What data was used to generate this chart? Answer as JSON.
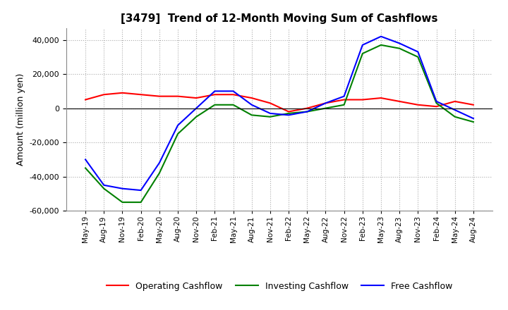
{
  "title": "[3479]  Trend of 12-Month Moving Sum of Cashflows",
  "ylabel": "Amount (million yen)",
  "ylim": [
    -60000,
    47000
  ],
  "yticks": [
    -60000,
    -40000,
    -20000,
    0,
    20000,
    40000
  ],
  "x_labels": [
    "May-19",
    "Aug-19",
    "Nov-19",
    "Feb-20",
    "May-20",
    "Aug-20",
    "Nov-20",
    "Feb-21",
    "May-21",
    "Aug-21",
    "Nov-21",
    "Feb-22",
    "May-22",
    "Aug-22",
    "Nov-22",
    "Feb-23",
    "May-23",
    "Aug-23",
    "Nov-23",
    "Feb-24",
    "May-24",
    "Aug-24"
  ],
  "operating": [
    5000,
    8000,
    9000,
    8000,
    7000,
    7000,
    6000,
    8000,
    8000,
    6000,
    3000,
    -2000,
    0,
    3000,
    5000,
    5000,
    6000,
    4000,
    2000,
    1000,
    4000,
    2000
  ],
  "investing": [
    -35000,
    -47000,
    -55000,
    -55000,
    -38000,
    -15000,
    -5000,
    2000,
    2000,
    -4000,
    -5000,
    -3000,
    -2000,
    0,
    2000,
    32000,
    37000,
    35000,
    30000,
    3000,
    -5000,
    -8000
  ],
  "free": [
    -30000,
    -45000,
    -47000,
    -48000,
    -32000,
    -10000,
    0,
    10000,
    10000,
    2000,
    -3000,
    -4000,
    -2000,
    3000,
    7000,
    37000,
    42000,
    38000,
    33000,
    4000,
    -1000,
    -6000
  ],
  "operating_color": "#ff0000",
  "investing_color": "#008000",
  "free_color": "#0000ff",
  "grid_color": "#aaaaaa",
  "background_color": "#ffffff"
}
